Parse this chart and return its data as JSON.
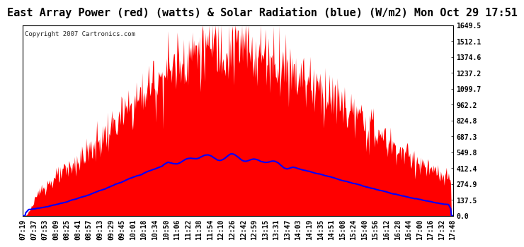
{
  "title": "East Array Power (red) (watts) & Solar Radiation (blue) (W/m2) Mon Oct 29 17:51",
  "copyright_text": "Copyright 2007 Cartronics.com",
  "ylim": [
    0.0,
    1649.5
  ],
  "yticks": [
    0.0,
    137.5,
    274.9,
    412.4,
    549.8,
    687.3,
    824.8,
    962.2,
    1099.7,
    1237.2,
    1374.6,
    1512.1,
    1649.5
  ],
  "x_labels": [
    "07:19",
    "07:37",
    "07:53",
    "08:09",
    "08:25",
    "08:41",
    "08:57",
    "09:13",
    "09:29",
    "09:45",
    "10:01",
    "10:18",
    "10:34",
    "10:50",
    "11:06",
    "11:22",
    "11:38",
    "11:54",
    "12:10",
    "12:26",
    "12:42",
    "12:59",
    "13:15",
    "13:31",
    "13:47",
    "14:03",
    "14:19",
    "14:35",
    "14:51",
    "15:08",
    "15:24",
    "15:40",
    "15:56",
    "16:12",
    "16:28",
    "16:44",
    "17:00",
    "17:16",
    "17:32",
    "17:48"
  ],
  "background_color": "#ffffff",
  "fill_color": "#ff0000",
  "line_color": "#0000ff",
  "grid_color": "#bbbbbb",
  "title_fontsize": 11,
  "tick_fontsize": 7,
  "copyright_fontsize": 6.5
}
